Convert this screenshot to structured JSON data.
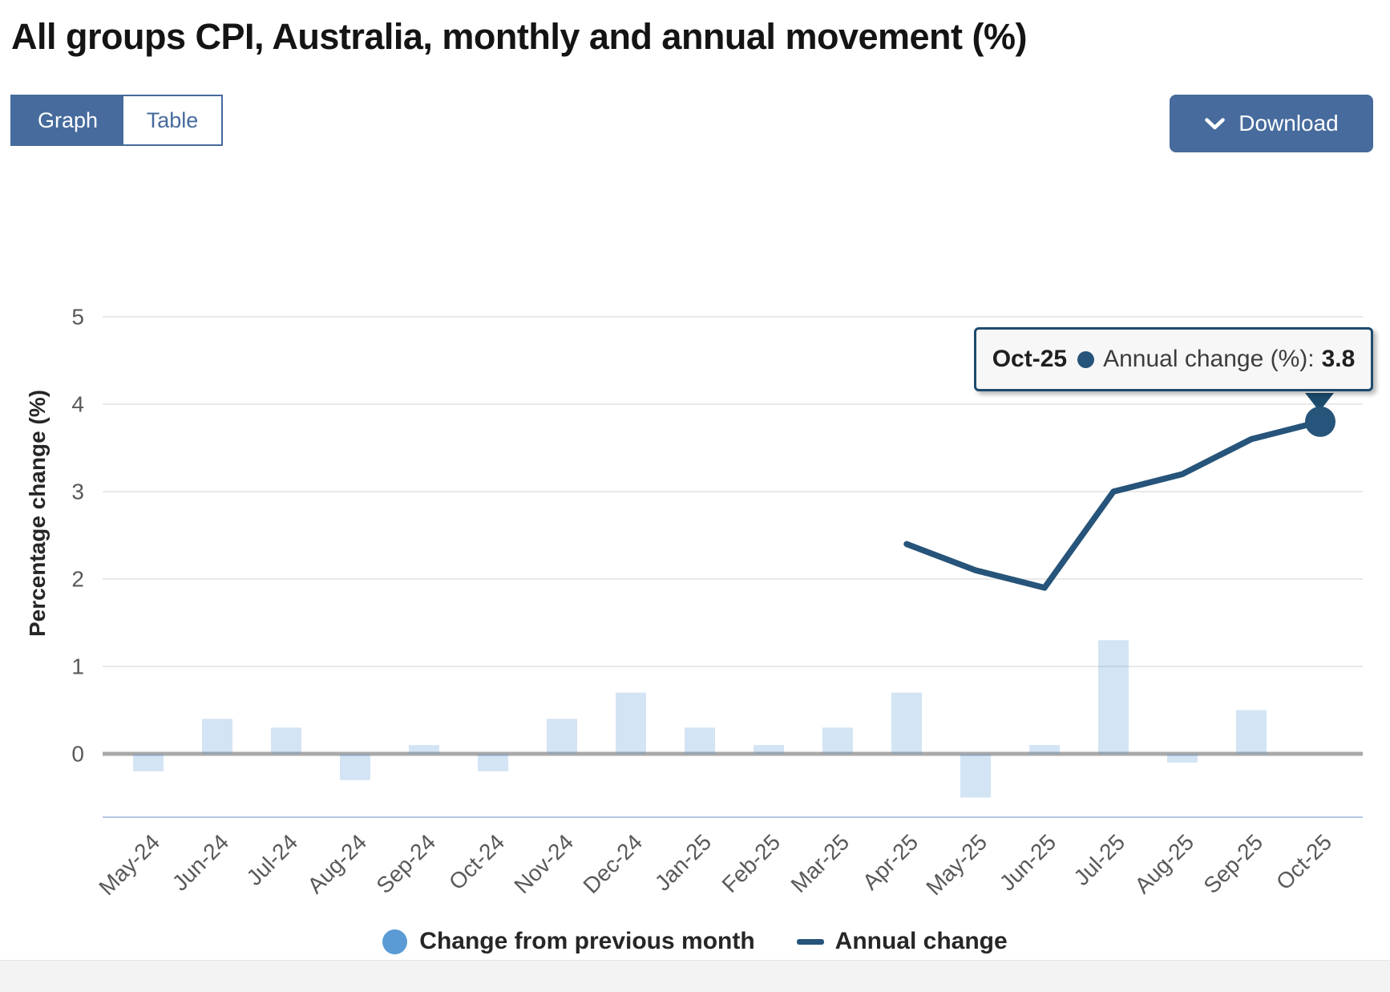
{
  "page": {
    "title": "All groups CPI, Australia, monthly and annual movement (%)"
  },
  "toolbar": {
    "graph_tab": "Graph",
    "table_tab": "Table",
    "download_label": "Download"
  },
  "tooltip": {
    "category": "Oct-25",
    "series_label": "Annual change (%):",
    "value": "3.8"
  },
  "legend": {
    "items": [
      {
        "label": "Change from previous month",
        "marker": "circle",
        "color": "#5b9bd5"
      },
      {
        "label": "Annual change",
        "marker": "line",
        "color": "#26547a"
      }
    ]
  },
  "colors": {
    "accent_blue": "#466b9c",
    "bar_blue": "#5b9bd5",
    "line_navy": "#26547a",
    "tooltip_border": "#1d4b6e",
    "gridline": "#e9e9e9",
    "zero_line": "#a9a9a9",
    "axis_bottom_line": "#b4c9e4",
    "tick_text": "#595959"
  },
  "chart_data": {
    "type": "bar",
    "title": "All groups CPI, Australia, monthly and annual movement (%)",
    "ylabel": "Percentage change (%)",
    "xlabel": "",
    "yticks": [
      0,
      1,
      2,
      3,
      4,
      5
    ],
    "ylim": [
      -0.75,
      5.5
    ],
    "grid": "horizontal",
    "legend_position": "bottom",
    "categories": [
      "May-24",
      "Jun-24",
      "Jul-24",
      "Aug-24",
      "Sep-24",
      "Oct-24",
      "Nov-24",
      "Dec-24",
      "Jan-25",
      "Feb-25",
      "Mar-25",
      "Apr-25",
      "May-25",
      "Jun-25",
      "Jul-25",
      "Aug-25",
      "Sep-25",
      "Oct-25"
    ],
    "series": [
      {
        "name": "Change from previous month",
        "type": "bar",
        "values": [
          -0.2,
          0.4,
          0.3,
          -0.3,
          0.1,
          -0.2,
          0.4,
          0.7,
          0.3,
          0.1,
          0.3,
          0.7,
          -0.5,
          0.1,
          1.3,
          -0.1,
          0.5,
          0.0
        ]
      },
      {
        "name": "Annual change",
        "type": "line",
        "values": [
          null,
          null,
          null,
          null,
          null,
          null,
          null,
          null,
          null,
          null,
          null,
          2.4,
          2.1,
          1.9,
          3.0,
          3.2,
          3.6,
          3.8
        ]
      }
    ],
    "highlight": {
      "category": "Oct-25",
      "series": "Annual change (%)",
      "value": 3.8
    }
  }
}
